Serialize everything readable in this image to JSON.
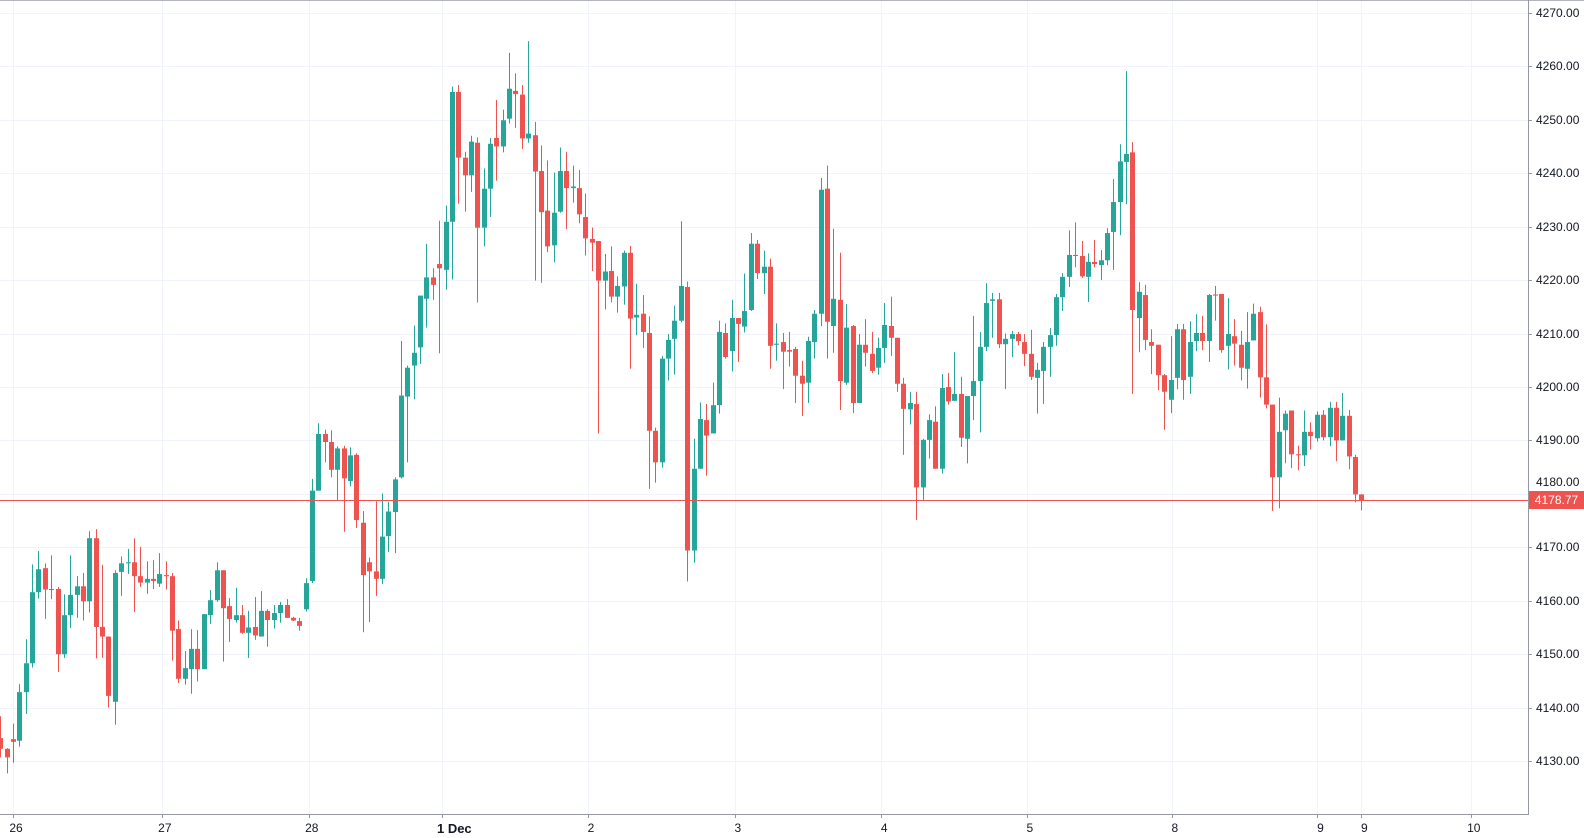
{
  "chart_data": {
    "type": "candlestick",
    "title": "",
    "xlabel": "",
    "ylabel": "",
    "ylim": [
      4120.1,
      4272.4
    ],
    "xlim": [
      -0.05,
      240.2
    ],
    "grid": true,
    "colors": {
      "up": "#26a69a",
      "down": "#ef5350",
      "grid": "#f0f3fa",
      "axis": "#9598a1",
      "price_line": "#ef5350"
    },
    "y_ticks": [
      "4130.00",
      "4140.00",
      "4150.00",
      "4160.00",
      "4170.00",
      "4180.00",
      "4190.00",
      "4200.00",
      "4210.00",
      "4220.00",
      "4230.00",
      "4240.00",
      "4250.00",
      "4260.00",
      "4270.00"
    ],
    "y_tick_values": [
      4130,
      4140,
      4150,
      4160,
      4170,
      4180,
      4190,
      4200,
      4210,
      4220,
      4230,
      4240,
      4250,
      4260,
      4270
    ],
    "x_ticks": [
      {
        "label": "26",
        "at": 2,
        "bold": false
      },
      {
        "label": "27",
        "at": 25.4,
        "bold": false
      },
      {
        "label": "28",
        "at": 48.5,
        "bold": false
      },
      {
        "label": "1 Dec",
        "at": 69.5,
        "bold": true
      },
      {
        "label": "2",
        "at": 92.4,
        "bold": false
      },
      {
        "label": "3",
        "at": 115.5,
        "bold": false
      },
      {
        "label": "4",
        "at": 138.5,
        "bold": false
      },
      {
        "label": "5",
        "at": 161.4,
        "bold": false
      },
      {
        "label": "8",
        "at": 184.2,
        "bold": false
      },
      {
        "label": "9",
        "at": 207.1,
        "bold": false
      },
      {
        "label": "9",
        "at": 214,
        "bold": false
      },
      {
        "label": "10",
        "at": 231.2,
        "bold": false
      }
    ],
    "last_price": 4178.77,
    "last_price_label": "4178.77",
    "ohlc_fields": [
      "open",
      "high",
      "low",
      "close"
    ],
    "ohlc": [
      [
        4134.3,
        4138.4,
        4130.7,
        4132.3
      ],
      [
        4132.3,
        4132.4,
        4127.7,
        4130.7
      ],
      [
        4134.1,
        4137.0,
        4129.7,
        4133.6
      ],
      [
        4133.8,
        4144.4,
        4132.7,
        4142.9
      ],
      [
        4142.9,
        4152.8,
        4138.8,
        4148.3
      ],
      [
        4148.3,
        4166.8,
        4147.5,
        4161.6
      ],
      [
        4161.6,
        4169.3,
        4160.4,
        4165.9
      ],
      [
        4166.1,
        4167.0,
        4156.6,
        4162.1
      ],
      [
        4162.1,
        4168.5,
        4160.3,
        4162.2
      ],
      [
        4162.2,
        4162.6,
        4146.7,
        4150.0
      ],
      [
        4150.0,
        4161.2,
        4149.3,
        4157.3
      ],
      [
        4157.3,
        4168.5,
        4154.9,
        4161.1
      ],
      [
        4161.1,
        4164.6,
        4156.8,
        4162.7
      ],
      [
        4162.7,
        4165.2,
        4156.3,
        4159.9
      ],
      [
        4159.9,
        4173.0,
        4157.8,
        4171.7
      ],
      [
        4171.7,
        4173.4,
        4149.2,
        4155.1
      ],
      [
        4155.1,
        4166.7,
        4149.3,
        4153.3
      ],
      [
        4153.3,
        4153.3,
        4140.0,
        4142.2
      ],
      [
        4141.1,
        4165.7,
        4136.8,
        4165.2
      ],
      [
        4165.4,
        4168.3,
        4160.9,
        4167.0
      ],
      [
        4167.0,
        4169.7,
        4165.0,
        4167.2
      ],
      [
        4167.2,
        4171.7,
        4157.9,
        4164.6
      ],
      [
        4164.6,
        4170.1,
        4162.6,
        4163.4
      ],
      [
        4163.4,
        4167.4,
        4161.3,
        4164.1
      ],
      [
        4164.1,
        4167.6,
        4162.2,
        4163.7
      ],
      [
        4163.2,
        4168.9,
        4162.6,
        4165.0
      ],
      [
        4164.8,
        4167.4,
        4162.1,
        4164.6
      ],
      [
        4164.6,
        4165.2,
        4148.8,
        4154.4
      ],
      [
        4154.7,
        4156.3,
        4144.6,
        4145.4
      ],
      [
        4145.4,
        4150.6,
        4144.3,
        4147.4
      ],
      [
        4147.2,
        4154.7,
        4142.6,
        4151.0
      ],
      [
        4151.0,
        4154.5,
        4144.9,
        4147.2
      ],
      [
        4147.2,
        4157.5,
        4147.2,
        4157.5
      ],
      [
        4157.3,
        4162.0,
        4155.7,
        4160.1
      ],
      [
        4160.1,
        4167.2,
        4159.8,
        4165.7
      ],
      [
        4165.7,
        4165.7,
        4148.6,
        4158.6
      ],
      [
        4159.0,
        4160.5,
        4152.3,
        4156.6
      ],
      [
        4156.4,
        4162.4,
        4155.9,
        4157.3
      ],
      [
        4157.3,
        4159.2,
        4153.8,
        4154.0
      ],
      [
        4154.0,
        4158.1,
        4149.3,
        4155.0
      ],
      [
        4155.1,
        4160.7,
        4152.7,
        4153.5
      ],
      [
        4153.3,
        4161.8,
        4153.3,
        4158.1
      ],
      [
        4158.1,
        4158.4,
        4151.4,
        4156.4
      ],
      [
        4156.4,
        4159.2,
        4154.8,
        4157.7
      ],
      [
        4157.7,
        4159.8,
        4155.9,
        4159.2
      ],
      [
        4159.2,
        4160.3,
        4156.8,
        4156.8
      ],
      [
        4156.8,
        4157.0,
        4156.2,
        4156.3
      ],
      [
        4156.2,
        4156.8,
        4154.4,
        4155.3
      ],
      [
        4158.4,
        4164.2,
        4158.0,
        4163.3
      ],
      [
        4163.7,
        4182.8,
        4163.3,
        4180.6
      ],
      [
        4180.6,
        4193.2,
        4180.6,
        4191.2
      ],
      [
        4191.2,
        4192.0,
        4185.9,
        4189.7
      ],
      [
        4189.7,
        4191.9,
        4183.1,
        4184.5
      ],
      [
        4184.5,
        4188.9,
        4178.8,
        4188.5
      ],
      [
        4188.5,
        4189.0,
        4172.9,
        4182.9
      ],
      [
        4182.4,
        4188.7,
        4181.4,
        4187.2
      ],
      [
        4187.3,
        4187.6,
        4173.6,
        4175.1
      ],
      [
        4174.6,
        4176.8,
        4154.1,
        4164.8
      ],
      [
        4167.2,
        4168.1,
        4156.0,
        4165.5
      ],
      [
        4165.5,
        4178.6,
        4160.9,
        4164.1
      ],
      [
        4164.1,
        4180.1,
        4163.1,
        4172.0
      ],
      [
        4172.1,
        4178.5,
        4169.1,
        4176.7
      ],
      [
        4176.6,
        4183.1,
        4168.9,
        4182.7
      ],
      [
        4183.1,
        4208.6,
        4182.9,
        4198.4
      ],
      [
        4198.2,
        4204.0,
        4185.9,
        4203.6
      ],
      [
        4204.0,
        4211.5,
        4197.7,
        4206.4
      ],
      [
        4207.4,
        4217.1,
        4204.3,
        4217.1
      ],
      [
        4216.5,
        4226.8,
        4211.1,
        4220.5
      ],
      [
        4220.5,
        4222.2,
        4216.3,
        4219.1
      ],
      [
        4223.0,
        4231.1,
        4206.3,
        4222.2
      ],
      [
        4221.9,
        4233.9,
        4218.2,
        4230.9
      ],
      [
        4230.9,
        4256.2,
        4220.1,
        4255.2
      ],
      [
        4255.2,
        4256.5,
        4234.3,
        4242.9
      ],
      [
        4242.9,
        4244.0,
        4232.8,
        4239.6
      ],
      [
        4239.6,
        4247.0,
        4236.5,
        4245.9
      ],
      [
        4245.7,
        4246.7,
        4215.8,
        4229.8
      ],
      [
        4229.8,
        4240.9,
        4226.3,
        4237.1
      ],
      [
        4237.1,
        4246.6,
        4231.8,
        4245.5
      ],
      [
        4246.6,
        4253.7,
        4238.6,
        4245.0
      ],
      [
        4245.0,
        4251.9,
        4243.9,
        4249.9
      ],
      [
        4250.2,
        4262.5,
        4249.3,
        4255.8
      ],
      [
        4255.4,
        4258.7,
        4248.5,
        4254.8
      ],
      [
        4254.7,
        4256.5,
        4244.5,
        4246.5
      ],
      [
        4246.5,
        4264.7,
        4245.7,
        4247.4
      ],
      [
        4247.1,
        4249.6,
        4219.9,
        4240.3
      ],
      [
        4240.4,
        4245.2,
        4219.5,
        4232.7
      ],
      [
        4233.0,
        4242.4,
        4225.2,
        4226.3
      ],
      [
        4226.5,
        4240.1,
        4223.3,
        4232.6
      ],
      [
        4232.8,
        4244.8,
        4232.6,
        4240.4
      ],
      [
        4240.4,
        4244.0,
        4229.5,
        4237.2
      ],
      [
        4237.2,
        4241.4,
        4234.5,
        4237.5
      ],
      [
        4237.2,
        4240.6,
        4230.6,
        4232.3
      ],
      [
        4231.8,
        4236.2,
        4224.6,
        4227.8
      ],
      [
        4227.7,
        4229.8,
        4221.7,
        4227.0
      ],
      [
        4227.3,
        4227.3,
        4191.3,
        4219.9
      ],
      [
        4219.9,
        4224.9,
        4214.5,
        4221.6
      ],
      [
        4221.7,
        4226.3,
        4215.8,
        4216.9
      ],
      [
        4216.9,
        4220.7,
        4213.9,
        4218.9
      ],
      [
        4218.8,
        4225.5,
        4215.4,
        4225.1
      ],
      [
        4225.1,
        4226.4,
        4203.4,
        4212.8
      ],
      [
        4213.0,
        4219.3,
        4209.7,
        4213.5
      ],
      [
        4213.7,
        4217.2,
        4207.3,
        4210.3
      ],
      [
        4210.1,
        4213.2,
        4180.9,
        4191.8
      ],
      [
        4191.8,
        4192.4,
        4182.1,
        4185.9
      ],
      [
        4185.9,
        4205.8,
        4184.9,
        4205.3
      ],
      [
        4205.3,
        4209.9,
        4201.2,
        4208.8
      ],
      [
        4209.0,
        4215.2,
        4202.3,
        4212.4
      ],
      [
        4212.4,
        4231.0,
        4212.1,
        4218.9
      ],
      [
        4218.7,
        4219.7,
        4163.6,
        4169.4
      ],
      [
        4169.4,
        4190.3,
        4167.1,
        4184.7
      ],
      [
        4184.7,
        4197.1,
        4184.7,
        4194.0
      ],
      [
        4193.8,
        4196.8,
        4183.4,
        4190.9
      ],
      [
        4191.3,
        4200.8,
        4191.3,
        4196.6
      ],
      [
        4196.6,
        4212.4,
        4195.0,
        4210.3
      ],
      [
        4210.1,
        4211.9,
        4205.3,
        4205.6
      ],
      [
        4206.7,
        4216.3,
        4202.9,
        4212.9
      ],
      [
        4212.9,
        4212.9,
        4204.7,
        4211.8
      ],
      [
        4211.3,
        4221.2,
        4210.2,
        4214.2
      ],
      [
        4214.4,
        4228.8,
        4214.2,
        4226.8
      ],
      [
        4226.8,
        4227.5,
        4220.2,
        4221.3
      ],
      [
        4221.3,
        4225.5,
        4217.4,
        4222.5
      ],
      [
        4222.5,
        4224.0,
        4203.4,
        4207.7
      ],
      [
        4207.9,
        4211.9,
        4204.9,
        4208.1
      ],
      [
        4208.4,
        4210.1,
        4199.6,
        4206.6
      ],
      [
        4206.9,
        4210.3,
        4203.8,
        4206.6
      ],
      [
        4207.1,
        4207.5,
        4197.0,
        4202.1
      ],
      [
        4202.1,
        4204.9,
        4194.6,
        4200.6
      ],
      [
        4200.8,
        4209.4,
        4197.0,
        4208.6
      ],
      [
        4208.4,
        4214.4,
        4205.3,
        4213.7
      ],
      [
        4213.7,
        4239.1,
        4211.4,
        4236.9
      ],
      [
        4237.1,
        4241.4,
        4205.3,
        4212.2
      ],
      [
        4211.4,
        4229.6,
        4206.4,
        4216.5
      ],
      [
        4216.3,
        4225.1,
        4195.7,
        4201.1
      ],
      [
        4200.8,
        4215.5,
        4200.4,
        4211.1
      ],
      [
        4211.4,
        4211.6,
        4195.1,
        4197.0
      ],
      [
        4197.0,
        4209.9,
        4197.0,
        4207.9
      ],
      [
        4207.9,
        4212.7,
        4203.8,
        4206.4
      ],
      [
        4206.2,
        4210.3,
        4202.6,
        4203.0
      ],
      [
        4203.6,
        4209.2,
        4202.3,
        4207.3
      ],
      [
        4207.3,
        4215.7,
        4204.5,
        4211.6
      ],
      [
        4211.4,
        4216.9,
        4205.8,
        4209.2
      ],
      [
        4209.2,
        4209.2,
        4199.1,
        4200.6
      ],
      [
        4200.6,
        4201.7,
        4187.3,
        4195.9
      ],
      [
        4195.8,
        4199.1,
        4193.0,
        4197.0
      ],
      [
        4196.8,
        4199.1,
        4175.1,
        4181.2
      ],
      [
        4181.2,
        4190.3,
        4178.9,
        4190.1
      ],
      [
        4190.1,
        4194.9,
        4186.6,
        4193.8
      ],
      [
        4193.5,
        4196.4,
        4184.7,
        4184.7
      ],
      [
        4184.7,
        4202.4,
        4183.8,
        4199.8
      ],
      [
        4200.0,
        4202.6,
        4196.7,
        4197.3
      ],
      [
        4197.4,
        4206.5,
        4197.4,
        4198.7
      ],
      [
        4198.7,
        4201.9,
        4188.8,
        4190.5
      ],
      [
        4190.3,
        4198.3,
        4185.7,
        4198.3
      ],
      [
        4198.3,
        4213.3,
        4193.8,
        4201.1
      ],
      [
        4201.1,
        4210.3,
        4191.5,
        4207.5
      ],
      [
        4207.5,
        4219.4,
        4206.7,
        4215.7
      ],
      [
        4216.1,
        4217.6,
        4209.2,
        4216.4
      ],
      [
        4216.4,
        4217.6,
        4207.3,
        4208.0
      ],
      [
        4208.0,
        4210.0,
        4199.6,
        4209.0
      ],
      [
        4209.0,
        4210.5,
        4205.6,
        4209.9
      ],
      [
        4209.9,
        4210.3,
        4207.8,
        4208.6
      ],
      [
        4208.4,
        4209.9,
        4203.9,
        4206.2
      ],
      [
        4206.2,
        4210.7,
        4201.3,
        4201.9
      ],
      [
        4201.7,
        4204.5,
        4195.0,
        4203.2
      ],
      [
        4203.0,
        4208.4,
        4196.8,
        4207.5
      ],
      [
        4207.5,
        4211.0,
        4201.9,
        4209.7
      ],
      [
        4209.7,
        4217.4,
        4207.7,
        4216.8
      ],
      [
        4216.8,
        4221.3,
        4214.2,
        4220.6
      ],
      [
        4220.6,
        4229.3,
        4218.7,
        4224.7
      ],
      [
        4224.7,
        4230.8,
        4222.4,
        4224.5
      ],
      [
        4224.5,
        4227.3,
        4220.4,
        4220.7
      ],
      [
        4220.6,
        4225.0,
        4215.9,
        4223.4
      ],
      [
        4223.4,
        4227.5,
        4222.4,
        4223.0
      ],
      [
        4222.8,
        4225.6,
        4220.0,
        4223.7
      ],
      [
        4223.7,
        4229.7,
        4222.8,
        4228.8
      ],
      [
        4229.0,
        4238.9,
        4221.9,
        4234.6
      ],
      [
        4234.6,
        4245.4,
        4228.4,
        4242.2
      ],
      [
        4242.1,
        4259.1,
        4234.2,
        4243.6
      ],
      [
        4243.9,
        4245.8,
        4198.7,
        4214.4
      ],
      [
        4212.9,
        4219.6,
        4206.5,
        4217.8
      ],
      [
        4217.2,
        4219.1,
        4206.9,
        4208.8
      ],
      [
        4208.4,
        4210.8,
        4202.4,
        4207.7
      ],
      [
        4207.9,
        4207.9,
        4199.4,
        4202.2
      ],
      [
        4202.2,
        4202.4,
        4192.0,
        4199.1
      ],
      [
        4197.6,
        4209.5,
        4195.1,
        4201.3
      ],
      [
        4201.7,
        4211.8,
        4199.6,
        4210.8
      ],
      [
        4210.8,
        4211.8,
        4197.6,
        4201.3
      ],
      [
        4201.9,
        4212.3,
        4198.7,
        4208.4
      ],
      [
        4208.6,
        4213.6,
        4206.7,
        4210.1
      ],
      [
        4210.1,
        4213.3,
        4206.9,
        4208.6
      ],
      [
        4208.6,
        4217.4,
        4204.7,
        4217.2
      ],
      [
        4217.3,
        4218.9,
        4212.4,
        4217.1
      ],
      [
        4217.4,
        4217.4,
        4206.4,
        4206.9
      ],
      [
        4207.7,
        4216.6,
        4203.3,
        4209.9
      ],
      [
        4209.5,
        4212.7,
        4204.0,
        4208.1
      ],
      [
        4207.9,
        4210.5,
        4201.2,
        4203.6
      ],
      [
        4203.4,
        4214.0,
        4199.7,
        4208.4
      ],
      [
        4208.7,
        4215.6,
        4208.7,
        4213.7
      ],
      [
        4214.0,
        4215.0,
        4198.0,
        4201.8
      ],
      [
        4201.8,
        4211.7,
        4196.0,
        4196.7
      ],
      [
        4196.7,
        4196.7,
        4176.8,
        4183.1
      ],
      [
        4183.1,
        4198.0,
        4177.3,
        4191.6
      ],
      [
        4191.9,
        4195.6,
        4185.7,
        4195.0
      ],
      [
        4195.6,
        4195.6,
        4184.8,
        4187.4
      ],
      [
        4187.4,
        4189.0,
        4184.4,
        4187.3
      ],
      [
        4187.2,
        4195.6,
        4185.2,
        4191.6
      ],
      [
        4191.6,
        4193.4,
        4188.3,
        4190.8
      ],
      [
        4190.4,
        4195.4,
        4189.8,
        4194.8
      ],
      [
        4194.8,
        4195.7,
        4190.0,
        4190.6
      ],
      [
        4190.6,
        4197.2,
        4188.9,
        4196.1
      ],
      [
        4196.1,
        4197.2,
        4186.1,
        4190.0
      ],
      [
        4190.0,
        4198.9,
        4190.0,
        4194.6
      ],
      [
        4194.6,
        4195.7,
        4184.6,
        4187.0
      ],
      [
        4186.9,
        4187.3,
        4178.4,
        4179.9
      ],
      [
        4179.9,
        4179.9,
        4176.9,
        4178.77
      ]
    ]
  }
}
